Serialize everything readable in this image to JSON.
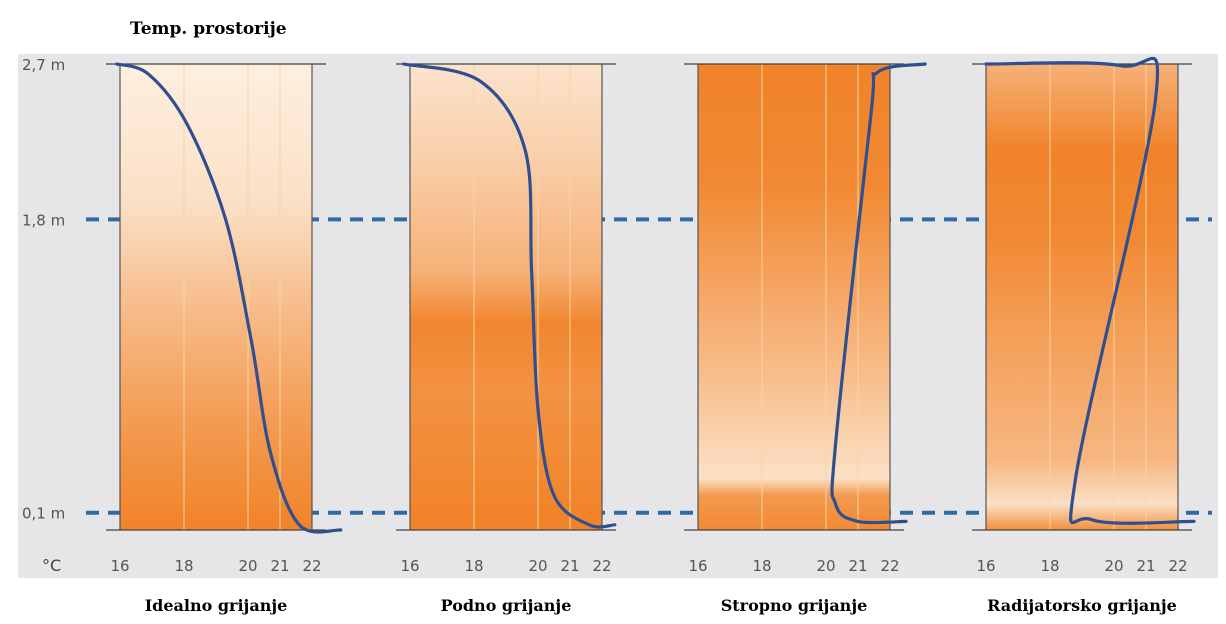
{
  "title": "Temp. prostorije",
  "unit_label": "°C",
  "heights": [
    {
      "label": "2,7 m",
      "value": 2.7
    },
    {
      "label": "1,8 m",
      "value": 1.8
    },
    {
      "label": "0,1 m",
      "value": 0.1
    }
  ],
  "colors": {
    "panel_bg": "#e6e6e8",
    "orange": "#f07d1f",
    "light": "#fdf1e4",
    "curve": "#2f4f8f",
    "dash": "#2d6aa6",
    "grid": "#f6d5a3"
  },
  "chart_data": {
    "type": "line",
    "xlabel": "°C",
    "x_ticks": [
      16,
      18,
      20,
      21,
      22
    ],
    "y_ticks": [
      "2,7 m",
      "1,8 m",
      "0,1 m"
    ],
    "xlim": [
      16,
      22
    ],
    "ylim": [
      0,
      2.7
    ],
    "panels": [
      {
        "name": "Idealno grijanje",
        "gradient": [
          {
            "h": 2.7,
            "shade": 0.02
          },
          {
            "h": 1.9,
            "shade": 0.15
          },
          {
            "h": 1.3,
            "shade": 0.45
          },
          {
            "h": 0.6,
            "shade": 0.75
          },
          {
            "h": 0.0,
            "shade": 0.95
          }
        ],
        "curve": [
          {
            "t": 15.9,
            "h": 2.7
          },
          {
            "t": 16.9,
            "h": 2.64
          },
          {
            "t": 18.1,
            "h": 2.35
          },
          {
            "t": 19.3,
            "h": 1.8
          },
          {
            "t": 20.1,
            "h": 1.1
          },
          {
            "t": 20.7,
            "h": 0.45
          },
          {
            "t": 21.6,
            "h": 0.03
          },
          {
            "t": 22.9,
            "h": 0.0
          }
        ]
      },
      {
        "name": "Podno grijanje",
        "gradient": [
          {
            "h": 2.7,
            "shade": 0.12
          },
          {
            "h": 2.2,
            "shade": 0.28
          },
          {
            "h": 1.5,
            "shade": 0.55
          },
          {
            "h": 1.2,
            "shade": 0.92
          },
          {
            "h": 0.8,
            "shade": 0.82
          },
          {
            "h": 0.0,
            "shade": 0.96
          }
        ],
        "curve": [
          {
            "t": 15.8,
            "h": 2.7
          },
          {
            "t": 18.2,
            "h": 2.6
          },
          {
            "t": 19.6,
            "h": 2.2
          },
          {
            "t": 19.8,
            "h": 1.5
          },
          {
            "t": 20.0,
            "h": 0.7
          },
          {
            "t": 20.5,
            "h": 0.2
          },
          {
            "t": 21.6,
            "h": 0.03
          },
          {
            "t": 22.4,
            "h": 0.03
          }
        ]
      },
      {
        "name": "Stropno grijanje",
        "gradient": [
          {
            "h": 2.7,
            "shade": 0.95
          },
          {
            "h": 2.0,
            "shade": 0.9
          },
          {
            "h": 1.5,
            "shade": 0.7
          },
          {
            "h": 0.9,
            "shade": 0.45
          },
          {
            "h": 0.3,
            "shade": 0.15
          },
          {
            "h": 0.2,
            "shade": 0.75
          },
          {
            "h": 0.0,
            "shade": 0.9
          }
        ],
        "curve": [
          {
            "t": 23.1,
            "h": 2.7
          },
          {
            "t": 21.6,
            "h": 2.65
          },
          {
            "t": 21.4,
            "h": 2.4
          },
          {
            "t": 20.3,
            "h": 0.5
          },
          {
            "t": 20.3,
            "h": 0.15
          },
          {
            "t": 21.0,
            "h": 0.05
          },
          {
            "t": 22.5,
            "h": 0.05
          }
        ]
      },
      {
        "name": "Radijatorsko grijanje",
        "gradient": [
          {
            "h": 2.7,
            "shade": 0.55
          },
          {
            "h": 2.2,
            "shade": 0.95
          },
          {
            "h": 1.7,
            "shade": 0.9
          },
          {
            "h": 1.1,
            "shade": 0.7
          },
          {
            "h": 0.4,
            "shade": 0.5
          },
          {
            "h": 0.15,
            "shade": 0.15
          },
          {
            "h": 0.0,
            "shade": 0.85
          }
        ],
        "curve": [
          {
            "t": 16.0,
            "h": 2.7
          },
          {
            "t": 20.2,
            "h": 2.69
          },
          {
            "t": 21.3,
            "h": 2.5
          },
          {
            "t": 18.8,
            "h": 0.3
          },
          {
            "t": 19.3,
            "h": 0.06
          },
          {
            "t": 22.5,
            "h": 0.05
          }
        ]
      }
    ]
  }
}
